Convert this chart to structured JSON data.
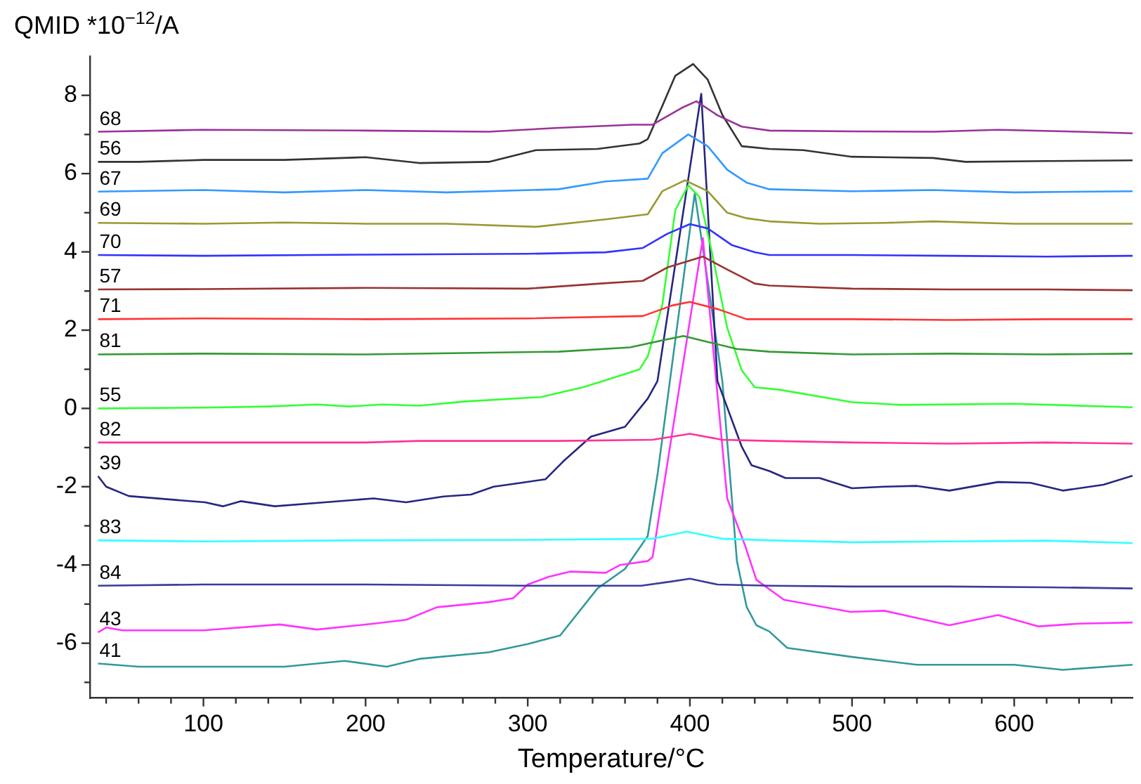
{
  "chart_data": {
    "type": "line",
    "ylabel": "QMID *10$^{−12}$/A",
    "xlabel": "Temperature/°C",
    "xlim": [
      30,
      673
    ],
    "ylim": [
      -7.4,
      9
    ],
    "xticks": [
      {
        "value": 40,
        "label": null
      },
      {
        "value": 60,
        "label": null
      },
      {
        "value": 80,
        "label": null
      },
      100,
      {
        "value": 120,
        "label": null
      },
      {
        "value": 140,
        "label": null
      },
      {
        "value": 160,
        "label": null
      },
      {
        "value": 180,
        "label": null
      },
      200,
      {
        "value": 220,
        "label": null
      },
      {
        "value": 240,
        "label": null
      },
      {
        "value": 260,
        "label": null
      },
      {
        "value": 280,
        "label": null
      },
      300,
      {
        "value": 320,
        "label": null
      },
      {
        "value": 340,
        "label": null
      },
      {
        "value": 360,
        "label": null
      },
      {
        "value": 380,
        "label": null
      },
      400,
      {
        "value": 420,
        "label": null
      },
      {
        "value": 440,
        "label": null
      },
      {
        "value": 460,
        "label": null
      },
      {
        "value": 480,
        "label": null
      },
      500,
      {
        "value": 520,
        "label": null
      },
      {
        "value": 540,
        "label": null
      },
      {
        "value": 560,
        "label": null
      },
      {
        "value": 580,
        "label": null
      },
      600,
      {
        "value": 620,
        "label": null
      },
      {
        "value": 640,
        "label": null
      },
      {
        "value": 660,
        "label": null
      }
    ],
    "yticks": [
      {
        "value": -7,
        "label": null
      },
      -6,
      {
        "value": -5,
        "label": null
      },
      -4,
      {
        "value": -3,
        "label": null
      },
      -2,
      {
        "value": -1,
        "label": null
      },
      0,
      {
        "value": 1,
        "label": null
      },
      2,
      {
        "value": 3,
        "label": null
      },
      4,
      {
        "value": 5,
        "label": null
      },
      6,
      {
        "value": 7,
        "label": null
      },
      8
    ],
    "grid": false,
    "legend": false,
    "marker": "none",
    "line_style": "solid",
    "series": [
      {
        "name": "68",
        "color": "#993399",
        "x": [
          35,
          100,
          200,
          276,
          319,
          365,
          377,
          395,
          404,
          417,
          432,
          449,
          500,
          550,
          590,
          640,
          673
        ],
        "values": [
          7.07,
          7.12,
          7.1,
          7.07,
          7.17,
          7.25,
          7.25,
          7.68,
          7.85,
          7.49,
          7.2,
          7.1,
          7.08,
          7.07,
          7.12,
          7.07,
          7.03
        ]
      },
      {
        "name": "56",
        "color": "#333333",
        "x": [
          35,
          60,
          100,
          150,
          200,
          233,
          276,
          305,
          343,
          369,
          374,
          383,
          391,
          402,
          411,
          420,
          432,
          449,
          470,
          500,
          550,
          570,
          620,
          673
        ],
        "values": [
          6.3,
          6.3,
          6.35,
          6.35,
          6.42,
          6.27,
          6.3,
          6.6,
          6.63,
          6.77,
          6.88,
          7.73,
          8.5,
          8.8,
          8.4,
          7.5,
          6.7,
          6.63,
          6.6,
          6.43,
          6.4,
          6.3,
          6.32,
          6.34
        ]
      },
      {
        "name": "67",
        "color": "#3399ff",
        "x": [
          35,
          100,
          150,
          200,
          250,
          319,
          348,
          374,
          383,
          399,
          411,
          423,
          435,
          449,
          500,
          550,
          600,
          673
        ],
        "values": [
          5.54,
          5.58,
          5.52,
          5.58,
          5.52,
          5.6,
          5.8,
          5.87,
          6.52,
          7.0,
          6.7,
          6.1,
          5.77,
          5.6,
          5.55,
          5.58,
          5.52,
          5.55
        ]
      },
      {
        "name": "69",
        "color": "#999933",
        "x": [
          35,
          100,
          150,
          200,
          250,
          305,
          348,
          374,
          383,
          397,
          411,
          423,
          435,
          449,
          480,
          520,
          550,
          600,
          673
        ],
        "values": [
          4.74,
          4.72,
          4.75,
          4.72,
          4.72,
          4.64,
          4.83,
          4.96,
          5.55,
          5.83,
          5.55,
          5.0,
          4.86,
          4.78,
          4.72,
          4.74,
          4.78,
          4.72,
          4.72
        ]
      },
      {
        "name": "70",
        "color": "#3333ff",
        "x": [
          35,
          100,
          200,
          300,
          348,
          371,
          386,
          400,
          411,
          426,
          440,
          449,
          500,
          560,
          620,
          673
        ],
        "values": [
          3.92,
          3.9,
          3.93,
          3.95,
          3.99,
          4.1,
          4.46,
          4.71,
          4.6,
          4.17,
          3.99,
          3.92,
          3.92,
          3.9,
          3.88,
          3.9
        ]
      },
      {
        "name": "57",
        "color": "#993333",
        "x": [
          35,
          100,
          200,
          300,
          348,
          371,
          386,
          408,
          423,
          440,
          449,
          500,
          560,
          620,
          673
        ],
        "values": [
          3.04,
          3.05,
          3.08,
          3.06,
          3.2,
          3.26,
          3.6,
          3.88,
          3.55,
          3.19,
          3.14,
          3.06,
          3.04,
          3.04,
          3.02
        ]
      },
      {
        "name": "71",
        "color": "#ff3333",
        "x": [
          35,
          100,
          200,
          300,
          371,
          389,
          400,
          417,
          435,
          449,
          500,
          560,
          620,
          673
        ],
        "values": [
          2.28,
          2.3,
          2.28,
          2.3,
          2.36,
          2.63,
          2.72,
          2.54,
          2.28,
          2.28,
          2.28,
          2.26,
          2.28,
          2.28
        ]
      },
      {
        "name": "81",
        "color": "#339933",
        "x": [
          35,
          100,
          200,
          319,
          363,
          383,
          396,
          411,
          429,
          449,
          500,
          560,
          620,
          673
        ],
        "values": [
          1.38,
          1.4,
          1.38,
          1.45,
          1.56,
          1.74,
          1.85,
          1.7,
          1.52,
          1.45,
          1.38,
          1.4,
          1.38,
          1.4
        ]
      },
      {
        "name": "55",
        "color": "#33ff33",
        "x": [
          35,
          100,
          140,
          170,
          190,
          210,
          233,
          262,
          308,
          334,
          348,
          369,
          374,
          383,
          391,
          399,
          406,
          413,
          423,
          432,
          440,
          455,
          500,
          530,
          600,
          673
        ],
        "values": [
          0.0,
          0.02,
          0.05,
          0.1,
          0.05,
          0.1,
          0.07,
          0.18,
          0.29,
          0.54,
          0.72,
          1.0,
          1.33,
          2.65,
          5.07,
          5.7,
          5.4,
          4.1,
          2.06,
          0.97,
          0.54,
          0.48,
          0.16,
          0.09,
          0.12,
          0.03
        ]
      },
      {
        "name": "82",
        "color": "#ff3399",
        "x": [
          35,
          100,
          200,
          233,
          320,
          377,
          400,
          420,
          449,
          500,
          560,
          620,
          673
        ],
        "values": [
          -0.87,
          -0.87,
          -0.87,
          -0.83,
          -0.83,
          -0.8,
          -0.65,
          -0.8,
          -0.83,
          -0.87,
          -0.9,
          -0.87,
          -0.9
        ]
      },
      {
        "name": "39",
        "color": "#262680",
        "x": [
          35,
          40,
          54,
          101,
          112,
          123,
          144,
          175,
          205,
          225,
          248,
          265,
          279,
          296,
          311,
          322,
          339,
          360,
          374,
          380,
          407,
          417,
          432,
          438,
          449,
          459,
          480,
          500,
          520,
          540,
          560,
          590,
          610,
          630,
          655,
          673
        ],
        "values": [
          -1.73,
          -2.0,
          -2.24,
          -2.4,
          -2.5,
          -2.37,
          -2.5,
          -2.4,
          -2.3,
          -2.4,
          -2.25,
          -2.2,
          -2.0,
          -1.9,
          -1.81,
          -1.35,
          -0.72,
          -0.47,
          0.25,
          0.7,
          8.04,
          0.7,
          -0.98,
          -1.45,
          -1.6,
          -1.78,
          -1.78,
          -2.04,
          -2.0,
          -1.98,
          -2.1,
          -1.88,
          -1.9,
          -2.1,
          -1.95,
          -1.72
        ]
      },
      {
        "name": "83",
        "color": "#33ffff",
        "x": [
          35,
          100,
          200,
          300,
          377,
          398,
          420,
          449,
          500,
          560,
          620,
          673
        ],
        "values": [
          -3.37,
          -3.4,
          -3.37,
          -3.36,
          -3.33,
          -3.15,
          -3.33,
          -3.37,
          -3.42,
          -3.4,
          -3.38,
          -3.44
        ]
      },
      {
        "name": "84",
        "color": "#3c3c99",
        "x": [
          35,
          100,
          200,
          300,
          370,
          389,
          400,
          417,
          449,
          500,
          560,
          620,
          673
        ],
        "values": [
          -4.53,
          -4.5,
          -4.5,
          -4.53,
          -4.53,
          -4.42,
          -4.35,
          -4.5,
          -4.53,
          -4.55,
          -4.55,
          -4.57,
          -4.6
        ]
      },
      {
        "name": "43",
        "color": "#ff33ff",
        "x": [
          35,
          40,
          50,
          100,
          147,
          170,
          205,
          225,
          244,
          276,
          291,
          300,
          313,
          326,
          348,
          357,
          374,
          377,
          408,
          423,
          434,
          441,
          458,
          499,
          520,
          560,
          590,
          615,
          640,
          673
        ],
        "values": [
          -5.72,
          -5.6,
          -5.67,
          -5.67,
          -5.52,
          -5.65,
          -5.5,
          -5.4,
          -5.08,
          -4.95,
          -4.85,
          -4.5,
          -4.3,
          -4.17,
          -4.2,
          -4.0,
          -3.9,
          -3.8,
          4.35,
          -2.3,
          -3.5,
          -4.38,
          -4.89,
          -5.2,
          -5.17,
          -5.54,
          -5.28,
          -5.57,
          -5.5,
          -5.47
        ]
      },
      {
        "name": "41",
        "color": "#339999",
        "x": [
          35,
          60,
          150,
          187,
          213,
          233,
          276,
          300,
          320,
          343,
          360,
          374,
          380,
          403,
          420,
          429,
          435,
          441,
          449,
          460,
          500,
          540,
          600,
          630,
          673
        ],
        "values": [
          -6.52,
          -6.6,
          -6.6,
          -6.45,
          -6.6,
          -6.4,
          -6.23,
          -6.02,
          -5.8,
          -4.6,
          -4.1,
          -3.26,
          -1.7,
          5.5,
          0.7,
          -3.9,
          -5.07,
          -5.54,
          -5.7,
          -6.12,
          -6.35,
          -6.55,
          -6.55,
          -6.68,
          -6.55
        ]
      }
    ]
  }
}
